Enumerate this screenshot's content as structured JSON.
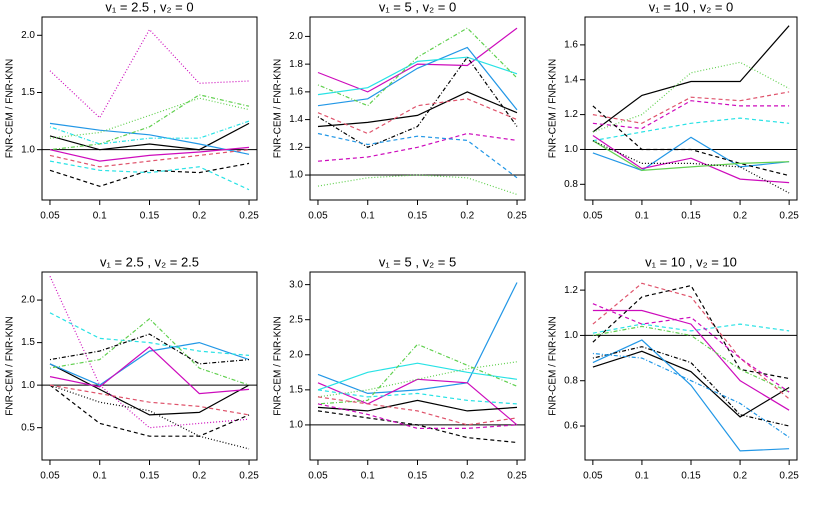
{
  "chart_data": [
    {
      "type": "line",
      "title": "v₁ = 2.5 , v₂ = 0",
      "y_label": "FNR-CEM / FNR-KNN",
      "x": [
        0.05,
        0.1,
        0.15,
        0.2,
        0.25
      ],
      "xlim": [
        0.042,
        0.258
      ],
      "xticks": [
        0.05,
        0.1,
        0.15,
        0.2,
        0.25
      ],
      "ylim": [
        0.56,
        2.16
      ],
      "yticks": [
        {
          "value": 1,
          "label": "1.0"
        },
        1.5,
        {
          "value": 2,
          "label": "2.0"
        }
      ],
      "hline": 1,
      "series": [
        {
          "color": "#000000",
          "dash": "solid",
          "values": [
            1.12,
            1.0,
            1.05,
            1.0,
            1.23
          ]
        },
        {
          "color": "#2297E6",
          "dash": "solid",
          "values": [
            1.23,
            1.17,
            1.13,
            1.05,
            0.96
          ]
        },
        {
          "color": "#CD0BBC",
          "dash": "dotted",
          "values": [
            1.69,
            1.28,
            2.05,
            1.58,
            1.6
          ]
        },
        {
          "color": "#61D04F",
          "dash": "dotted",
          "values": [
            1.1,
            1.15,
            1.3,
            1.45,
            1.35
          ]
        },
        {
          "color": "#61D04F",
          "dash": "dotdash",
          "values": [
            1.0,
            1.05,
            1.2,
            1.48,
            1.38
          ]
        },
        {
          "color": "#28E2E5",
          "dash": "dotdash",
          "values": [
            1.2,
            1.05,
            1.1,
            1.1,
            1.25
          ]
        },
        {
          "color": "#000000",
          "dash": "dashed",
          "values": [
            0.82,
            0.68,
            0.82,
            0.8,
            0.88
          ]
        },
        {
          "color": "#DF536B",
          "dash": "dashed",
          "values": [
            0.95,
            0.85,
            0.9,
            0.95,
            1.0
          ]
        },
        {
          "color": "#28E2E5",
          "dash": "dashed",
          "values": [
            0.9,
            0.82,
            0.8,
            0.85,
            0.65
          ]
        },
        {
          "color": "#CD0BBC",
          "dash": "solid",
          "values": [
            1.0,
            0.9,
            0.95,
            0.98,
            1.02
          ]
        }
      ]
    },
    {
      "type": "line",
      "title": "v₁ = 5 , v₂ = 0",
      "y_label": "FNR-CEM / FNR-KNN",
      "x": [
        0.05,
        0.1,
        0.15,
        0.2,
        0.25
      ],
      "xlim": [
        0.042,
        0.258
      ],
      "xticks": [
        0.05,
        0.1,
        0.15,
        0.2,
        0.25
      ],
      "ylim": [
        0.82,
        2.14
      ],
      "yticks": [
        {
          "value": 1,
          "label": "1.0"
        },
        1.2,
        1.4,
        1.6,
        1.8,
        {
          "value": 2,
          "label": "2.0"
        }
      ],
      "hline": 1,
      "series": [
        {
          "color": "#000000",
          "dash": "solid",
          "values": [
            1.35,
            1.38,
            1.43,
            1.6,
            1.45
          ]
        },
        {
          "color": "#CD0BBC",
          "dash": "solid",
          "values": [
            1.74,
            1.6,
            1.8,
            1.79,
            2.06
          ]
        },
        {
          "color": "#2297E6",
          "dash": "solid",
          "values": [
            1.5,
            1.55,
            1.77,
            1.92,
            1.47
          ]
        },
        {
          "color": "#28E2E5",
          "dash": "solid",
          "values": [
            1.58,
            1.63,
            1.82,
            1.85,
            1.73
          ]
        },
        {
          "color": "#61D04F",
          "dash": "dotdash",
          "values": [
            1.65,
            1.5,
            1.85,
            2.06,
            1.7
          ]
        },
        {
          "color": "#61D04F",
          "dash": "dotted",
          "values": [
            0.92,
            0.98,
            1.0,
            0.98,
            0.86
          ]
        },
        {
          "color": "#000000",
          "dash": "dotdash",
          "values": [
            1.42,
            1.2,
            1.35,
            1.85,
            1.35
          ]
        },
        {
          "color": "#DF536B",
          "dash": "dashed",
          "values": [
            1.45,
            1.3,
            1.5,
            1.55,
            1.4
          ]
        },
        {
          "color": "#CD0BBC",
          "dash": "dashed",
          "values": [
            1.1,
            1.13,
            1.2,
            1.3,
            1.25
          ]
        },
        {
          "color": "#2297E6",
          "dash": "dashed",
          "values": [
            1.3,
            1.22,
            1.28,
            1.25,
            0.98
          ]
        }
      ]
    },
    {
      "type": "line",
      "title": "v₁ = 10 , v₂ = 0",
      "y_label": "FNR-CEM / FNR-KNN",
      "x": [
        0.05,
        0.1,
        0.15,
        0.2,
        0.25
      ],
      "xlim": [
        0.042,
        0.258
      ],
      "xticks": [
        0.05,
        0.1,
        0.15,
        0.2,
        0.25
      ],
      "ylim": [
        0.71,
        1.76
      ],
      "yticks": [
        0.8,
        {
          "value": 1,
          "label": "1.0"
        },
        1.2,
        1.4,
        1.6
      ],
      "hline": 1,
      "series": [
        {
          "color": "#000000",
          "dash": "solid",
          "values": [
            1.1,
            1.31,
            1.39,
            1.39,
            1.71
          ]
        },
        {
          "color": "#61D04F",
          "dash": "dotted",
          "values": [
            1.1,
            1.2,
            1.44,
            1.5,
            1.35
          ]
        },
        {
          "color": "#DF536B",
          "dash": "dashed",
          "values": [
            1.2,
            1.15,
            1.3,
            1.28,
            1.33
          ]
        },
        {
          "color": "#CD0BBC",
          "dash": "dashed",
          "values": [
            1.15,
            1.12,
            1.28,
            1.25,
            1.25
          ]
        },
        {
          "color": "#28E2E5",
          "dash": "dashed",
          "values": [
            1.05,
            1.1,
            1.15,
            1.18,
            1.15
          ]
        },
        {
          "color": "#2297E6",
          "dash": "solid",
          "values": [
            0.98,
            0.88,
            1.07,
            0.9,
            0.93
          ]
        },
        {
          "color": "#CD0BBC",
          "dash": "solid",
          "values": [
            1.08,
            0.89,
            0.95,
            0.83,
            0.81
          ]
        },
        {
          "color": "#000000",
          "dash": "dashed",
          "values": [
            1.25,
            1.0,
            1.0,
            0.92,
            0.85
          ]
        },
        {
          "color": "#61D04F",
          "dash": "solid",
          "values": [
            1.05,
            0.88,
            0.9,
            0.92,
            0.93
          ]
        },
        {
          "color": "#000000",
          "dash": "dotted",
          "values": [
            1.05,
            0.92,
            0.92,
            0.9,
            0.75
          ]
        }
      ]
    },
    {
      "type": "line",
      "title": "v₁ = 2.5 , v₂ = 2.5",
      "y_label": "FNR-CEM / FNR-KNN",
      "x": [
        0.05,
        0.1,
        0.15,
        0.2,
        0.25
      ],
      "xlim": [
        0.042,
        0.258
      ],
      "xticks": [
        0.05,
        0.1,
        0.15,
        0.2,
        0.25
      ],
      "ylim": [
        0.12,
        2.33
      ],
      "yticks": [
        0.5,
        {
          "value": 1,
          "label": "1.0"
        },
        1.5,
        {
          "value": 2,
          "label": "2.0"
        }
      ],
      "hline": 1,
      "series": [
        {
          "color": "#000000",
          "dash": "solid",
          "values": [
            1.25,
            0.95,
            0.65,
            0.68,
            1.0
          ]
        },
        {
          "color": "#2297E6",
          "dash": "solid",
          "values": [
            1.25,
            1.0,
            1.4,
            1.5,
            1.3
          ]
        },
        {
          "color": "#CD0BBC",
          "dash": "solid",
          "values": [
            1.1,
            0.98,
            1.45,
            0.9,
            0.95
          ]
        },
        {
          "color": "#CD0BBC",
          "dash": "dotted",
          "values": [
            2.28,
            1.0,
            0.5,
            0.55,
            0.6
          ]
        },
        {
          "color": "#28E2E5",
          "dash": "dashed",
          "values": [
            1.85,
            1.55,
            1.5,
            1.4,
            1.35
          ]
        },
        {
          "color": "#61D04F",
          "dash": "dotdash",
          "values": [
            1.2,
            1.3,
            1.78,
            1.2,
            1.0
          ]
        },
        {
          "color": "#000000",
          "dash": "dashed",
          "values": [
            1.0,
            0.55,
            0.4,
            0.4,
            0.65
          ]
        },
        {
          "color": "#000000",
          "dash": "dotted",
          "values": [
            1.0,
            0.8,
            0.7,
            0.4,
            0.25
          ]
        },
        {
          "color": "#000000",
          "dash": "dotdash",
          "values": [
            1.3,
            1.4,
            1.6,
            1.25,
            1.3
          ]
        },
        {
          "color": "#DF536B",
          "dash": "dashed",
          "values": [
            1.0,
            0.9,
            0.8,
            0.75,
            0.65
          ]
        }
      ]
    },
    {
      "type": "line",
      "title": "v₁ = 5 , v₂ = 5",
      "y_label": "FNR-CEM / FNR-KNN",
      "x": [
        0.05,
        0.1,
        0.15,
        0.2,
        0.25
      ],
      "xlim": [
        0.042,
        0.258
      ],
      "xticks": [
        0.05,
        0.1,
        0.15,
        0.2,
        0.25
      ],
      "ylim": [
        0.5,
        3.18
      ],
      "yticks": [
        {
          "value": 1,
          "label": "1.0"
        },
        1.5,
        {
          "value": 2,
          "label": "2.0"
        },
        2.5,
        {
          "value": 3,
          "label": "3.0"
        }
      ],
      "hline": 1,
      "series": [
        {
          "color": "#2297E6",
          "dash": "solid",
          "values": [
            1.72,
            1.45,
            1.5,
            1.6,
            3.03
          ]
        },
        {
          "color": "#CD0BBC",
          "dash": "solid",
          "values": [
            1.6,
            1.3,
            1.65,
            1.6,
            1.0
          ]
        },
        {
          "color": "#28E2E5",
          "dash": "solid",
          "values": [
            1.5,
            1.75,
            1.88,
            1.75,
            1.65
          ]
        },
        {
          "color": "#61D04F",
          "dash": "dotted",
          "values": [
            1.4,
            1.5,
            1.65,
            1.8,
            1.9
          ]
        },
        {
          "color": "#61D04F",
          "dash": "dotdash",
          "values": [
            1.3,
            1.35,
            2.15,
            1.85,
            1.55
          ]
        },
        {
          "color": "#000000",
          "dash": "solid",
          "values": [
            1.25,
            1.2,
            1.35,
            1.2,
            1.25
          ]
        },
        {
          "color": "#000000",
          "dash": "dashed",
          "values": [
            1.2,
            1.1,
            1.0,
            0.82,
            0.75
          ]
        },
        {
          "color": "#DF536B",
          "dash": "dashed",
          "values": [
            1.4,
            1.3,
            1.2,
            1.0,
            1.1
          ]
        },
        {
          "color": "#28E2E5",
          "dash": "dashed",
          "values": [
            1.5,
            1.4,
            1.45,
            1.35,
            1.3
          ]
        },
        {
          "color": "#CD0BBC",
          "dash": "dashed",
          "values": [
            1.3,
            1.15,
            0.95,
            0.95,
            1.0
          ]
        }
      ]
    },
    {
      "type": "line",
      "title": "v₁ = 10 , v₂ = 10",
      "y_label": "FNR-CEM / FNR-KNN",
      "x": [
        0.05,
        0.1,
        0.15,
        0.2,
        0.25
      ],
      "xlim": [
        0.042,
        0.258
      ],
      "xticks": [
        0.05,
        0.1,
        0.15,
        0.2,
        0.25
      ],
      "ylim": [
        0.45,
        1.28
      ],
      "yticks": [
        0.6,
        0.8,
        {
          "value": 1,
          "label": "1.0"
        },
        1.2
      ],
      "hline": 1,
      "series": [
        {
          "color": "#000000",
          "dash": "solid",
          "values": [
            0.86,
            0.93,
            0.84,
            0.64,
            0.77
          ]
        },
        {
          "color": "#2297E6",
          "dash": "solid",
          "values": [
            0.88,
            0.98,
            0.78,
            0.49,
            0.5
          ]
        },
        {
          "color": "#CD0BBC",
          "dash": "solid",
          "values": [
            1.11,
            1.11,
            1.05,
            0.8,
            0.67
          ]
        },
        {
          "color": "#DF536B",
          "dash": "dashed",
          "values": [
            1.05,
            1.23,
            1.17,
            0.9,
            0.72
          ]
        },
        {
          "color": "#000000",
          "dash": "dashed",
          "values": [
            0.97,
            1.17,
            1.22,
            0.85,
            0.81
          ]
        },
        {
          "color": "#28E2E5",
          "dash": "dashed",
          "values": [
            1.01,
            1.05,
            1.02,
            1.05,
            1.02
          ]
        },
        {
          "color": "#61D04F",
          "dash": "dotdash",
          "values": [
            1.0,
            1.04,
            1.0,
            0.85,
            0.75
          ]
        },
        {
          "color": "#000000",
          "dash": "dotdash",
          "values": [
            0.9,
            0.95,
            0.88,
            0.65,
            0.6
          ]
        },
        {
          "color": "#2297E6",
          "dash": "dotdash",
          "values": [
            0.92,
            0.9,
            0.8,
            0.7,
            0.55
          ]
        },
        {
          "color": "#CD0BBC",
          "dash": "dashed",
          "values": [
            1.14,
            1.05,
            1.08,
            0.9,
            0.75
          ]
        }
      ]
    }
  ]
}
